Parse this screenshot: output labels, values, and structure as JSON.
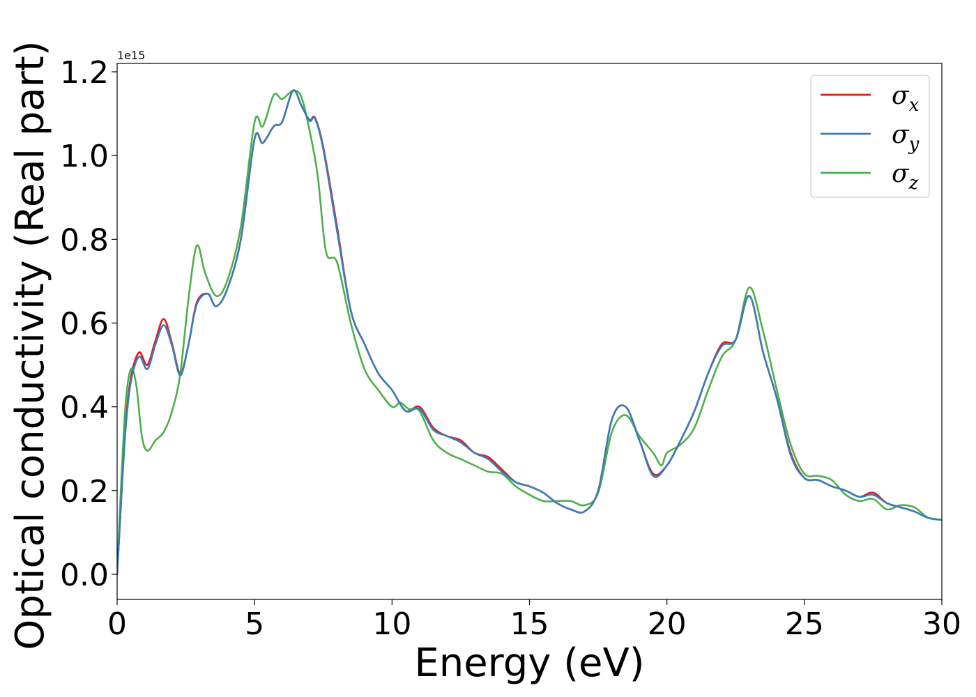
{
  "chart_data": {
    "type": "line",
    "title": "",
    "xlabel": "Energy (eV)",
    "ylabel": "Optical conductivity (Real part)",
    "y_offset_label": "1e15",
    "xlim": [
      0,
      30
    ],
    "ylim": [
      -0.06,
      1.22
    ],
    "xticks": [
      0,
      5,
      10,
      15,
      20,
      25,
      30
    ],
    "xtick_labels": [
      "0",
      "5",
      "10",
      "15",
      "20",
      "25",
      "30"
    ],
    "yticks": [
      0.0,
      0.2,
      0.4,
      0.6,
      0.8,
      1.0,
      1.2
    ],
    "ytick_labels": [
      "0.0",
      "0.2",
      "0.4",
      "0.6",
      "0.8",
      "1.0",
      "1.2"
    ],
    "grid": false,
    "legend_position": "top-right",
    "series": [
      {
        "name": "σx",
        "label_base": "σ",
        "label_sub": "x",
        "color": "#e41a1c",
        "x": [
          0,
          0.1,
          0.3,
          0.5,
          0.8,
          1.1,
          1.4,
          1.7,
          2.0,
          2.3,
          2.6,
          2.9,
          3.3,
          3.6,
          4.0,
          4.5,
          5.0,
          5.3,
          5.7,
          6.0,
          6.4,
          6.7,
          7.0,
          7.2,
          7.5,
          8.0,
          8.5,
          9.0,
          9.5,
          10.0,
          10.5,
          11.0,
          11.5,
          12.0,
          12.5,
          13.0,
          13.5,
          14.0,
          14.5,
          15.0,
          15.5,
          16.0,
          16.5,
          17.0,
          17.5,
          18.0,
          18.5,
          19.0,
          19.5,
          20.0,
          20.5,
          21.0,
          21.5,
          22.0,
          22.5,
          23.0,
          23.5,
          24.0,
          24.5,
          25.0,
          25.5,
          26.0,
          26.5,
          27.0,
          27.5,
          28.0,
          28.5,
          29.0,
          29.5,
          30.0
        ],
        "values": [
          0.0,
          0.12,
          0.35,
          0.47,
          0.53,
          0.5,
          0.56,
          0.61,
          0.55,
          0.48,
          0.55,
          0.65,
          0.67,
          0.64,
          0.68,
          0.8,
          1.04,
          1.03,
          1.07,
          1.08,
          1.155,
          1.12,
          1.085,
          1.09,
          1.02,
          0.83,
          0.63,
          0.55,
          0.48,
          0.44,
          0.39,
          0.4,
          0.35,
          0.33,
          0.32,
          0.29,
          0.28,
          0.25,
          0.22,
          0.21,
          0.195,
          0.17,
          0.155,
          0.15,
          0.2,
          0.37,
          0.4,
          0.32,
          0.24,
          0.26,
          0.32,
          0.39,
          0.48,
          0.55,
          0.56,
          0.665,
          0.53,
          0.42,
          0.29,
          0.23,
          0.225,
          0.21,
          0.2,
          0.185,
          0.195,
          0.17,
          0.16,
          0.15,
          0.135,
          0.13
        ]
      },
      {
        "name": "σy",
        "label_base": "σ",
        "label_sub": "y",
        "color": "#377eb8",
        "x": [
          0,
          0.1,
          0.3,
          0.5,
          0.8,
          1.1,
          1.4,
          1.7,
          2.0,
          2.3,
          2.6,
          2.9,
          3.3,
          3.6,
          4.0,
          4.5,
          5.0,
          5.3,
          5.7,
          6.0,
          6.4,
          6.7,
          7.0,
          7.2,
          7.5,
          8.0,
          8.5,
          9.0,
          9.5,
          10.0,
          10.5,
          11.0,
          11.5,
          12.0,
          12.5,
          13.0,
          13.5,
          14.0,
          14.5,
          15.0,
          15.5,
          16.0,
          16.5,
          17.0,
          17.5,
          18.0,
          18.5,
          19.0,
          19.5,
          20.0,
          20.5,
          21.0,
          21.5,
          22.0,
          22.5,
          23.0,
          23.5,
          24.0,
          24.5,
          25.0,
          25.5,
          26.0,
          26.5,
          27.0,
          27.5,
          28.0,
          28.5,
          29.0,
          29.5,
          30.0
        ],
        "values": [
          0.0,
          0.12,
          0.34,
          0.46,
          0.52,
          0.49,
          0.55,
          0.595,
          0.545,
          0.475,
          0.55,
          0.645,
          0.67,
          0.64,
          0.68,
          0.8,
          1.04,
          1.03,
          1.07,
          1.08,
          1.155,
          1.12,
          1.083,
          1.088,
          1.015,
          0.82,
          0.63,
          0.55,
          0.48,
          0.44,
          0.39,
          0.395,
          0.345,
          0.33,
          0.315,
          0.29,
          0.275,
          0.245,
          0.22,
          0.21,
          0.195,
          0.17,
          0.155,
          0.15,
          0.2,
          0.37,
          0.4,
          0.32,
          0.235,
          0.26,
          0.32,
          0.39,
          0.48,
          0.545,
          0.56,
          0.665,
          0.53,
          0.42,
          0.285,
          0.23,
          0.225,
          0.21,
          0.2,
          0.185,
          0.19,
          0.17,
          0.16,
          0.15,
          0.135,
          0.13
        ]
      },
      {
        "name": "σz",
        "label_base": "σ",
        "label_sub": "z",
        "color": "#4daf4a",
        "x": [
          0,
          0.1,
          0.3,
          0.5,
          0.7,
          0.9,
          1.1,
          1.4,
          1.7,
          2.0,
          2.3,
          2.6,
          2.9,
          3.2,
          3.6,
          4.0,
          4.5,
          5.0,
          5.3,
          5.7,
          6.0,
          6.4,
          6.7,
          7.0,
          7.3,
          7.6,
          8.0,
          8.5,
          9.0,
          9.5,
          10.0,
          10.3,
          10.6,
          11.0,
          11.5,
          12.0,
          12.5,
          13.0,
          13.5,
          14.0,
          14.5,
          15.0,
          15.5,
          16.0,
          16.5,
          17.0,
          17.5,
          18.0,
          18.5,
          19.0,
          19.5,
          19.8,
          20.0,
          20.5,
          21.0,
          21.5,
          22.0,
          22.5,
          23.0,
          23.5,
          24.0,
          24.5,
          25.0,
          25.5,
          26.0,
          26.5,
          27.0,
          27.5,
          28.0,
          28.5,
          29.0,
          29.5,
          30.0
        ],
        "values": [
          0.0,
          0.15,
          0.4,
          0.49,
          0.45,
          0.33,
          0.295,
          0.32,
          0.34,
          0.39,
          0.48,
          0.66,
          0.785,
          0.72,
          0.665,
          0.7,
          0.83,
          1.08,
          1.07,
          1.145,
          1.135,
          1.155,
          1.14,
          1.06,
          0.95,
          0.77,
          0.745,
          0.6,
          0.49,
          0.44,
          0.4,
          0.41,
          0.395,
          0.39,
          0.32,
          0.29,
          0.275,
          0.26,
          0.245,
          0.24,
          0.21,
          0.19,
          0.175,
          0.175,
          0.175,
          0.165,
          0.195,
          0.34,
          0.38,
          0.33,
          0.29,
          0.26,
          0.29,
          0.31,
          0.35,
          0.44,
          0.52,
          0.56,
          0.685,
          0.58,
          0.44,
          0.31,
          0.24,
          0.235,
          0.225,
          0.19,
          0.175,
          0.18,
          0.155,
          0.165,
          0.16,
          0.135,
          0.13
        ]
      }
    ]
  }
}
